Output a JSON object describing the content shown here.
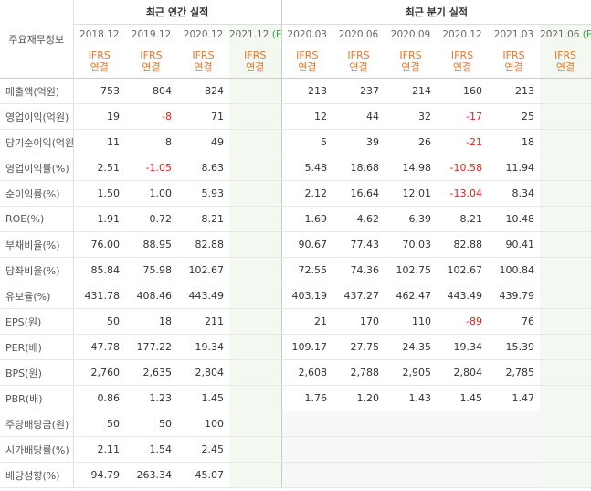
{
  "header": {
    "label": "주요재무정보",
    "groups": [
      {
        "title": "최근 연간 실적"
      },
      {
        "title": "최근 분기 실적"
      }
    ]
  },
  "columns": [
    {
      "date": "2018.12",
      "basis": [
        "IFRS",
        "연결"
      ]
    },
    {
      "date": "2019.12",
      "basis": [
        "IFRS",
        "연결"
      ]
    },
    {
      "date": "2020.12",
      "basis": [
        "IFRS",
        "연결"
      ]
    },
    {
      "date": "2021.12",
      "suffix": "(E)",
      "basis": [
        "IFRS",
        "연결"
      ]
    },
    {
      "date": "2020.03",
      "basis": [
        "IFRS",
        "연결"
      ]
    },
    {
      "date": "2020.06",
      "basis": [
        "IFRS",
        "연결"
      ]
    },
    {
      "date": "2020.09",
      "basis": [
        "IFRS",
        "연결"
      ]
    },
    {
      "date": "2020.12",
      "basis": [
        "IFRS",
        "연결"
      ]
    },
    {
      "date": "2021.03",
      "basis": [
        "IFRS",
        "연결"
      ]
    },
    {
      "date": "2021.06",
      "suffix": "(E)",
      "basis": [
        "IFRS",
        "연결"
      ]
    }
  ],
  "sections": [
    {
      "rows": [
        {
          "label": "매출액(억원)",
          "values": [
            "753",
            "804",
            "824",
            null,
            "213",
            "237",
            "214",
            "160",
            "213",
            null
          ]
        },
        {
          "label": "영업이익(억원)",
          "values": [
            "19",
            "-8",
            "71",
            null,
            "12",
            "44",
            "32",
            "-17",
            "25",
            null
          ]
        },
        {
          "label": "당기순이익(억원)",
          "values": [
            "11",
            "8",
            "49",
            null,
            "5",
            "39",
            "26",
            "-21",
            "18",
            null
          ]
        }
      ]
    },
    {
      "rows": [
        {
          "label": "영업이익률(%)",
          "values": [
            "2.51",
            "-1.05",
            "8.63",
            null,
            "5.48",
            "18.68",
            "14.98",
            "-10.58",
            "11.94",
            null
          ]
        },
        {
          "label": "순이익률(%)",
          "values": [
            "1.50",
            "1.00",
            "5.93",
            null,
            "2.12",
            "16.64",
            "12.01",
            "-13.04",
            "8.34",
            null
          ]
        },
        {
          "label": "ROE(%)",
          "values": [
            "1.91",
            "0.72",
            "8.21",
            null,
            "1.69",
            "4.62",
            "6.39",
            "8.21",
            "10.48",
            null
          ]
        }
      ]
    },
    {
      "rows": [
        {
          "label": "부채비율(%)",
          "values": [
            "76.00",
            "88.95",
            "82.88",
            null,
            "90.67",
            "77.43",
            "70.03",
            "82.88",
            "90.41",
            null
          ]
        },
        {
          "label": "당좌비율(%)",
          "values": [
            "85.84",
            "75.98",
            "102.67",
            null,
            "72.55",
            "74.36",
            "102.75",
            "102.67",
            "100.84",
            null
          ]
        },
        {
          "label": "유보율(%)",
          "values": [
            "431.78",
            "408.46",
            "443.49",
            null,
            "403.19",
            "437.27",
            "462.47",
            "443.49",
            "439.79",
            null
          ]
        }
      ]
    },
    {
      "rows": [
        {
          "label": "EPS(원)",
          "values": [
            "50",
            "18",
            "211",
            null,
            "21",
            "170",
            "110",
            "-89",
            "76",
            null
          ]
        },
        {
          "label": "PER(배)",
          "values": [
            "47.78",
            "177.22",
            "19.34",
            null,
            "109.17",
            "27.75",
            "24.35",
            "19.34",
            "15.39",
            null
          ]
        },
        {
          "label": "BPS(원)",
          "values": [
            "2,760",
            "2,635",
            "2,804",
            null,
            "2,608",
            "2,788",
            "2,905",
            "2,804",
            "2,785",
            null
          ]
        },
        {
          "label": "PBR(배)",
          "values": [
            "0.86",
            "1.23",
            "1.45",
            null,
            "1.76",
            "1.20",
            "1.43",
            "1.45",
            "1.47",
            null
          ]
        }
      ]
    },
    {
      "rows": [
        {
          "label": "주당배당금(원)",
          "values": [
            "50",
            "50",
            "100",
            null,
            null,
            null,
            null,
            null,
            null,
            null
          ]
        },
        {
          "label": "시가배당률(%)",
          "values": [
            "2.11",
            "1.54",
            "2.45",
            null,
            null,
            null,
            null,
            null,
            null,
            null
          ]
        },
        {
          "label": "배당성향(%)",
          "values": [
            "94.79",
            "263.34",
            "45.07",
            null,
            null,
            null,
            null,
            null,
            null,
            null
          ]
        }
      ]
    }
  ]
}
